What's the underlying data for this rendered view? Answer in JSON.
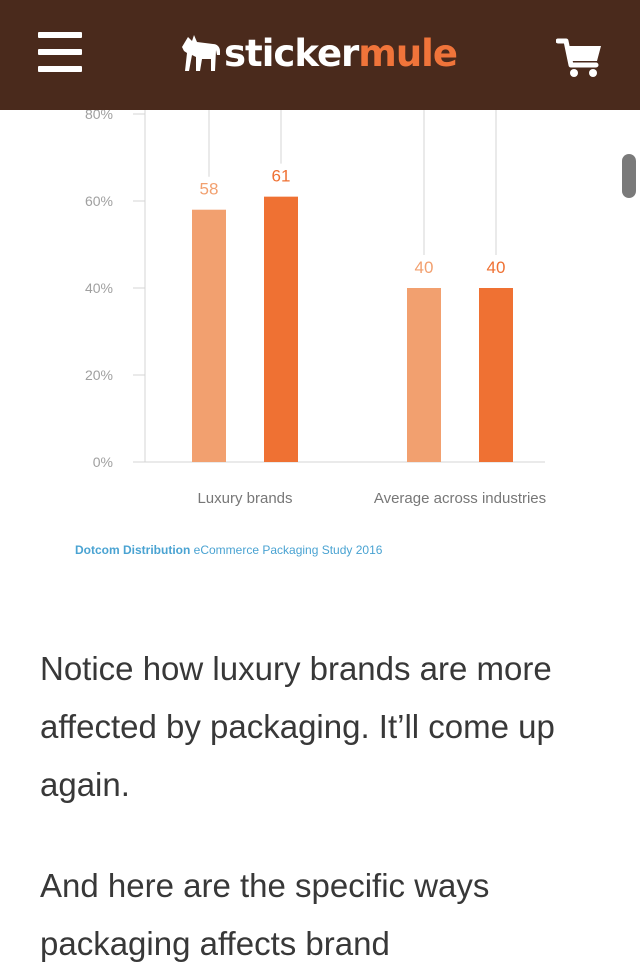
{
  "header": {
    "logo_word1": "sticker",
    "logo_word2": "mule",
    "menu_icon": "hamburger-menu-icon",
    "cart_icon": "shopping-cart-icon",
    "background_color": "#4a2a1c",
    "accent_color": "#f0743a"
  },
  "chart_data": {
    "type": "bar",
    "categories": [
      "Luxury brands",
      "Average across industries"
    ],
    "series": [
      {
        "values": [
          58,
          40
        ],
        "color": "#f2a06f"
      },
      {
        "values": [
          61,
          40
        ],
        "color": "#ef7133"
      }
    ],
    "y_ticks": [
      "0%",
      "20%",
      "40%",
      "60%",
      "80%"
    ],
    "ylim": [
      0,
      80
    ],
    "grid": false
  },
  "source": {
    "brand": "Dotcom Distribution",
    "text": " eCommerce Packaging Study 2016"
  },
  "article": {
    "paragraph1": "Notice how luxury brands are more affected by packaging. It’ll come up again.",
    "paragraph2": "And here are the specific ways packaging affects brand"
  }
}
